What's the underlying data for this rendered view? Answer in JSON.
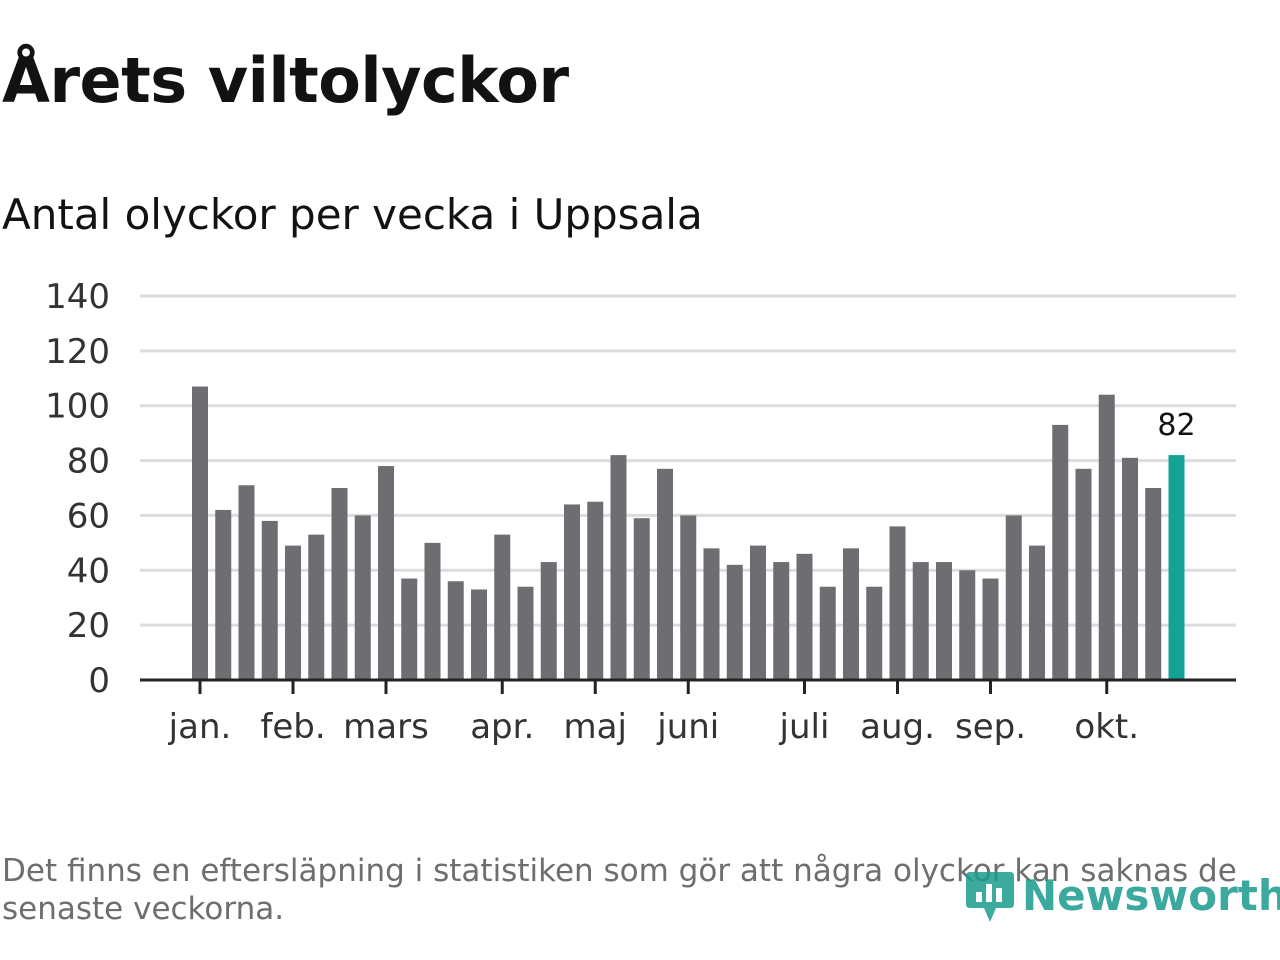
{
  "title": "Årets viltolyckor",
  "subtitle": "Antal olyckor per vecka i Uppsala",
  "footnote": "Det finns en eftersläpning i statistiken som gör att några olyckor kan saknas de senaste veckorna.",
  "brand": {
    "name": "Newsworthy",
    "icon": "newsworthy-logo-icon"
  },
  "colors": {
    "bar": "#6e6d72",
    "highlight": "#12a394",
    "grid": "#dcdcdc",
    "axis": "#222222"
  },
  "chart_data": {
    "type": "bar",
    "title": "Antal olyckor per vecka i Uppsala",
    "xlabel": "",
    "ylabel": "",
    "ylim": [
      0,
      140
    ],
    "yticks": [
      0,
      20,
      40,
      60,
      80,
      100,
      120,
      140
    ],
    "grid": true,
    "values": [
      107,
      62,
      71,
      58,
      49,
      53,
      70,
      60,
      78,
      37,
      50,
      36,
      33,
      53,
      34,
      43,
      64,
      65,
      82,
      59,
      77,
      60,
      48,
      42,
      49,
      43,
      46,
      34,
      48,
      34,
      56,
      43,
      43,
      40,
      37,
      60,
      49,
      93,
      77,
      104,
      81,
      70,
      82
    ],
    "highlight_index": 42,
    "highlight_label": "82",
    "month_labels": [
      {
        "label": "jan.",
        "bar_index": 0
      },
      {
        "label": "feb.",
        "bar_index": 4
      },
      {
        "label": "mars",
        "bar_index": 8
      },
      {
        "label": "apr.",
        "bar_index": 13
      },
      {
        "label": "maj",
        "bar_index": 17
      },
      {
        "label": "juni",
        "bar_index": 21
      },
      {
        "label": "juli",
        "bar_index": 26
      },
      {
        "label": "aug.",
        "bar_index": 30
      },
      {
        "label": "sep.",
        "bar_index": 34
      },
      {
        "label": "okt.",
        "bar_index": 39
      }
    ]
  }
}
